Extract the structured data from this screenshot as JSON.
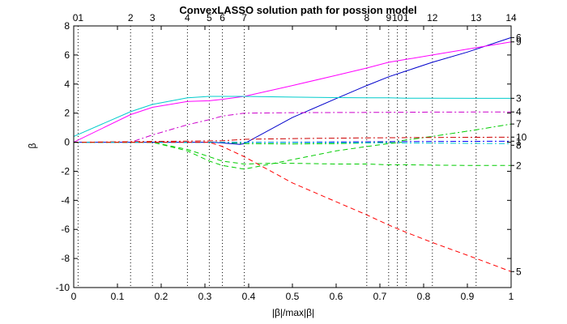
{
  "chart_data": {
    "type": "line",
    "title": "ConvexLASSO solution path for possion model",
    "xlabel": "|β|/max|β|",
    "ylabel": "β",
    "xlim": [
      0,
      1
    ],
    "ylim": [
      -10,
      8
    ],
    "xticks": [
      0,
      0.1,
      0.2,
      0.3,
      0.4,
      0.5,
      0.6,
      0.7,
      0.8,
      0.9,
      1
    ],
    "yticks": [
      -10,
      -8,
      -6,
      -4,
      -2,
      0,
      2,
      4,
      6,
      8
    ],
    "grid": false,
    "step_lines": [
      {
        "x": 0.01,
        "label": "01"
      },
      {
        "x": 0.13,
        "label": "2"
      },
      {
        "x": 0.18,
        "label": "3"
      },
      {
        "x": 0.26,
        "label": "4"
      },
      {
        "x": 0.31,
        "label": "5"
      },
      {
        "x": 0.34,
        "label": "6"
      },
      {
        "x": 0.39,
        "label": "7"
      },
      {
        "x": 0.67,
        "label": "8"
      },
      {
        "x": 0.72,
        "label": "9"
      },
      {
        "x": 0.74,
        "label": "10"
      },
      {
        "x": 0.76,
        "label": "1"
      },
      {
        "x": 0.82,
        "label": "12"
      },
      {
        "x": 0.92,
        "label": "13"
      },
      {
        "x": 1.0,
        "label": "14"
      }
    ],
    "series": [
      {
        "label": "6",
        "color": "#0000cc",
        "dash": "solid",
        "x": [
          0,
          0.32,
          0.38,
          0.39,
          0.5,
          0.6,
          0.67,
          0.72,
          0.76,
          0.82,
          0.9,
          1.0
        ],
        "y": [
          0,
          0,
          -0.15,
          -0.1,
          1.7,
          3.0,
          3.9,
          4.5,
          4.9,
          5.5,
          6.2,
          7.2
        ]
      },
      {
        "label": "9",
        "color": "#ff00ff",
        "dash": "solid",
        "x": [
          0,
          0.13,
          0.18,
          0.26,
          0.31,
          0.34,
          0.39,
          0.5,
          0.6,
          0.67,
          0.72,
          0.76,
          0.82,
          0.92,
          1.0
        ],
        "y": [
          0,
          1.9,
          2.4,
          2.8,
          2.85,
          2.95,
          3.15,
          3.9,
          4.6,
          5.1,
          5.5,
          5.7,
          6.0,
          6.5,
          6.9
        ]
      },
      {
        "label": "3",
        "color": "#00cccc",
        "dash": "solid",
        "x": [
          0,
          0.13,
          0.18,
          0.26,
          0.31,
          0.34,
          0.39,
          0.5,
          0.6,
          0.67,
          0.72,
          0.76,
          0.82,
          0.92,
          1.0
        ],
        "y": [
          0.4,
          2.1,
          2.6,
          3.05,
          3.15,
          3.15,
          3.15,
          3.1,
          3.07,
          3.05,
          3.05,
          3.03,
          3.03,
          3.02,
          3.02
        ]
      },
      {
        "label": "4",
        "color": "#cc00cc",
        "dash": "dashdot",
        "x": [
          0,
          0.13,
          0.18,
          0.26,
          0.31,
          0.34,
          0.39,
          0.5,
          0.67,
          0.82,
          1.0
        ],
        "y": [
          0,
          0,
          0.5,
          1.2,
          1.55,
          1.8,
          2.0,
          2.03,
          2.05,
          2.07,
          2.08
        ]
      },
      {
        "label": "7",
        "color": "#00cc00",
        "dash": "dashdot",
        "x": [
          0,
          0.34,
          0.39,
          0.5,
          0.6,
          0.67,
          0.72,
          0.76,
          0.82,
          0.92,
          1.0
        ],
        "y": [
          0,
          0,
          -0.1,
          -0.12,
          -0.1,
          -0.05,
          0,
          0.15,
          0.4,
          0.85,
          1.25
        ]
      },
      {
        "label": "10",
        "color": "#cc0000",
        "dash": "dashdot",
        "x": [
          0,
          0.34,
          0.39,
          0.5,
          0.67,
          0.8,
          1.0
        ],
        "y": [
          0,
          0.1,
          0.2,
          0.25,
          0.3,
          0.32,
          0.35
        ]
      },
      {
        "label": "1",
        "color": "#0000ff",
        "dash": "dashdot",
        "x": [
          0,
          0.5,
          0.8,
          1.0
        ],
        "y": [
          0,
          0,
          0.05,
          0.07
        ]
      },
      {
        "label": "8",
        "color": "#00cccc",
        "dash": "dashdot",
        "x": [
          0,
          0.5,
          0.8,
          1.0
        ],
        "y": [
          0,
          -0.02,
          -0.06,
          -0.1
        ]
      },
      {
        "label": "2",
        "color": "#00cc00",
        "dash": "dashed",
        "x": [
          0,
          0.18,
          0.26,
          0.31,
          0.34,
          0.39,
          0.45,
          0.5,
          0.6,
          0.67,
          0.72,
          0.76,
          0.82,
          0.92,
          1.0
        ],
        "y": [
          0,
          0,
          -0.5,
          -1.0,
          -1.3,
          -1.5,
          -1.45,
          -1.45,
          -1.5,
          -1.5,
          -1.55,
          -1.55,
          -1.58,
          -1.6,
          -1.6
        ]
      },
      {
        "label": "",
        "color": "#00cc00",
        "dash": "dashed",
        "x": [
          0,
          0.18,
          0.26,
          0.31,
          0.34,
          0.39,
          0.45,
          0.5,
          0.6,
          0.67,
          0.72,
          0.75
        ],
        "y": [
          0,
          0,
          -0.6,
          -1.3,
          -1.6,
          -1.85,
          -1.5,
          -1.2,
          -0.6,
          -0.3,
          -0.1,
          0
        ]
      },
      {
        "label": "5",
        "color": "#ff0000",
        "dash": "dashed",
        "x": [
          0,
          0.31,
          0.34,
          0.39,
          0.5,
          0.6,
          0.67,
          0.72,
          0.76,
          0.82,
          0.92,
          1.0
        ],
        "y": [
          0,
          0,
          -0.3,
          -1.0,
          -2.8,
          -4.1,
          -5.0,
          -5.7,
          -6.2,
          -6.9,
          -8.0,
          -8.9
        ]
      }
    ]
  }
}
